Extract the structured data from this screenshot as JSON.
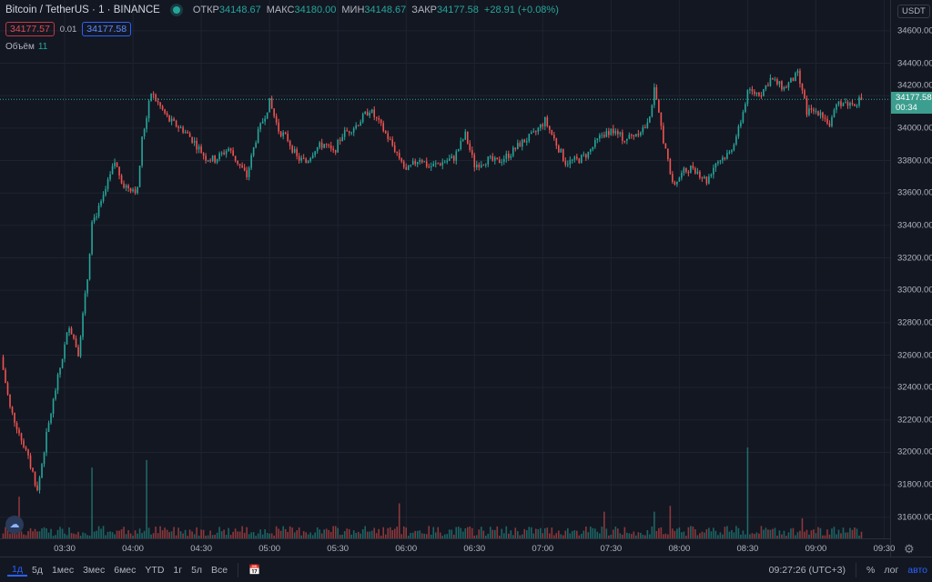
{
  "header": {
    "symbol": "Bitcoin / TetherUS",
    "interval": "1",
    "exchange": "BINANCE",
    "ohlc": [
      {
        "k": "ОТКР",
        "v": "34148.67"
      },
      {
        "k": "МАКС",
        "v": "34180.00"
      },
      {
        "k": "МИН",
        "v": "34148.67"
      },
      {
        "k": "ЗАКР",
        "v": "34177.58"
      }
    ],
    "change": "+28.91 (+0.08%)"
  },
  "quotes": {
    "bid": "34177.57",
    "spread": "0.01",
    "ask": "34177.58"
  },
  "volume": {
    "label": "Объём",
    "value": "11"
  },
  "price_axis": {
    "currency": "USDT",
    "current_price": "34177.58",
    "countdown": "00:34"
  },
  "bottom": {
    "ranges": [
      "1д",
      "5д",
      "1мес",
      "3мес",
      "6мес",
      "YTD",
      "1г",
      "5л",
      "Все"
    ],
    "active": "1д",
    "clock": "09:27:26 (UTC+3)",
    "percent": "%",
    "log": "лог",
    "auto": "авто"
  },
  "colors": {
    "up": "#26a69a",
    "down": "#ef5350",
    "bg": "#131722",
    "grid": "#1f2330"
  },
  "chart_data": {
    "type": "candlestick",
    "interval_minutes": 1,
    "x_unit": "minutes since 03:00",
    "ylim": [
      31470,
      34790
    ],
    "y_ticks": [
      34600,
      34400,
      34200,
      34000,
      33800,
      33600,
      33400,
      33200,
      33000,
      32800,
      32600,
      32400,
      32200,
      32000,
      31800,
      31600
    ],
    "y_tick_labels": [
      "34600.00",
      "34400.00",
      "34200.00",
      "34000.00",
      "33800.00",
      "33600.00",
      "33400.00",
      "33200.00",
      "33000.00",
      "32800.00",
      "32600.00",
      "32400.00",
      "32200.00",
      "32000.00",
      "31800.00",
      "31600.00"
    ],
    "x_ticks": [
      30,
      60,
      90,
      120,
      150,
      180,
      210,
      240,
      270,
      300,
      330,
      360,
      390
    ],
    "x_tick_labels": [
      "03:30",
      "04:00",
      "04:30",
      "05:00",
      "05:30",
      "06:00",
      "06:30",
      "07:00",
      "07:30",
      "08:00",
      "08:30",
      "09:00",
      "09:30"
    ],
    "x_range": [
      1.6,
      392.6
    ],
    "close_path": [
      [
        2,
        32589
      ],
      [
        6,
        32274
      ],
      [
        12,
        32046
      ],
      [
        16,
        31874
      ],
      [
        18,
        31760
      ],
      [
        22,
        32103
      ],
      [
        26,
        32389
      ],
      [
        32,
        32789
      ],
      [
        36,
        32617
      ],
      [
        40,
        33074
      ],
      [
        42,
        33417
      ],
      [
        46,
        33531
      ],
      [
        52,
        33789
      ],
      [
        56,
        33646
      ],
      [
        62,
        33617
      ],
      [
        64,
        33931
      ],
      [
        68,
        34217
      ],
      [
        72,
        34131
      ],
      [
        76,
        34046
      ],
      [
        82,
        33989
      ],
      [
        86,
        33931
      ],
      [
        92,
        33817
      ],
      [
        96,
        33806
      ],
      [
        102,
        33874
      ],
      [
        106,
        33789
      ],
      [
        110,
        33703
      ],
      [
        114,
        33931
      ],
      [
        120,
        34160
      ],
      [
        124,
        33989
      ],
      [
        128,
        33931
      ],
      [
        132,
        33817
      ],
      [
        136,
        33789
      ],
      [
        140,
        33874
      ],
      [
        144,
        33903
      ],
      [
        148,
        33846
      ],
      [
        152,
        33960
      ],
      [
        158,
        34017
      ],
      [
        164,
        34114
      ],
      [
        170,
        33989
      ],
      [
        176,
        33846
      ],
      [
        180,
        33731
      ],
      [
        186,
        33817
      ],
      [
        190,
        33760
      ],
      [
        196,
        33789
      ],
      [
        201,
        33817
      ],
      [
        206,
        33960
      ],
      [
        210,
        33771
      ],
      [
        216,
        33806
      ],
      [
        220,
        33789
      ],
      [
        226,
        33846
      ],
      [
        230,
        33903
      ],
      [
        236,
        33960
      ],
      [
        241,
        34046
      ],
      [
        246,
        33903
      ],
      [
        250,
        33789
      ],
      [
        256,
        33806
      ],
      [
        260,
        33846
      ],
      [
        266,
        33960
      ],
      [
        270,
        33989
      ],
      [
        276,
        33931
      ],
      [
        280,
        33960
      ],
      [
        286,
        34017
      ],
      [
        289,
        34229
      ],
      [
        293,
        33931
      ],
      [
        297,
        33646
      ],
      [
        302,
        33731
      ],
      [
        306,
        33760
      ],
      [
        312,
        33674
      ],
      [
        316,
        33789
      ],
      [
        322,
        33846
      ],
      [
        326,
        33989
      ],
      [
        330,
        34217
      ],
      [
        336,
        34217
      ],
      [
        340,
        34303
      ],
      [
        346,
        34246
      ],
      [
        352,
        34331
      ],
      [
        356,
        34103
      ],
      [
        362,
        34103
      ],
      [
        366,
        34017
      ],
      [
        370,
        34160
      ],
      [
        376,
        34149
      ],
      [
        380,
        34177.58
      ]
    ],
    "volume_spikes": [
      [
        10,
        50
      ],
      [
        42,
        85
      ],
      [
        66,
        94
      ],
      [
        177,
        42
      ],
      [
        267,
        32
      ],
      [
        289,
        32
      ],
      [
        296,
        39
      ],
      [
        330,
        109
      ],
      [
        354,
        24
      ]
    ],
    "volume_max": 120
  }
}
